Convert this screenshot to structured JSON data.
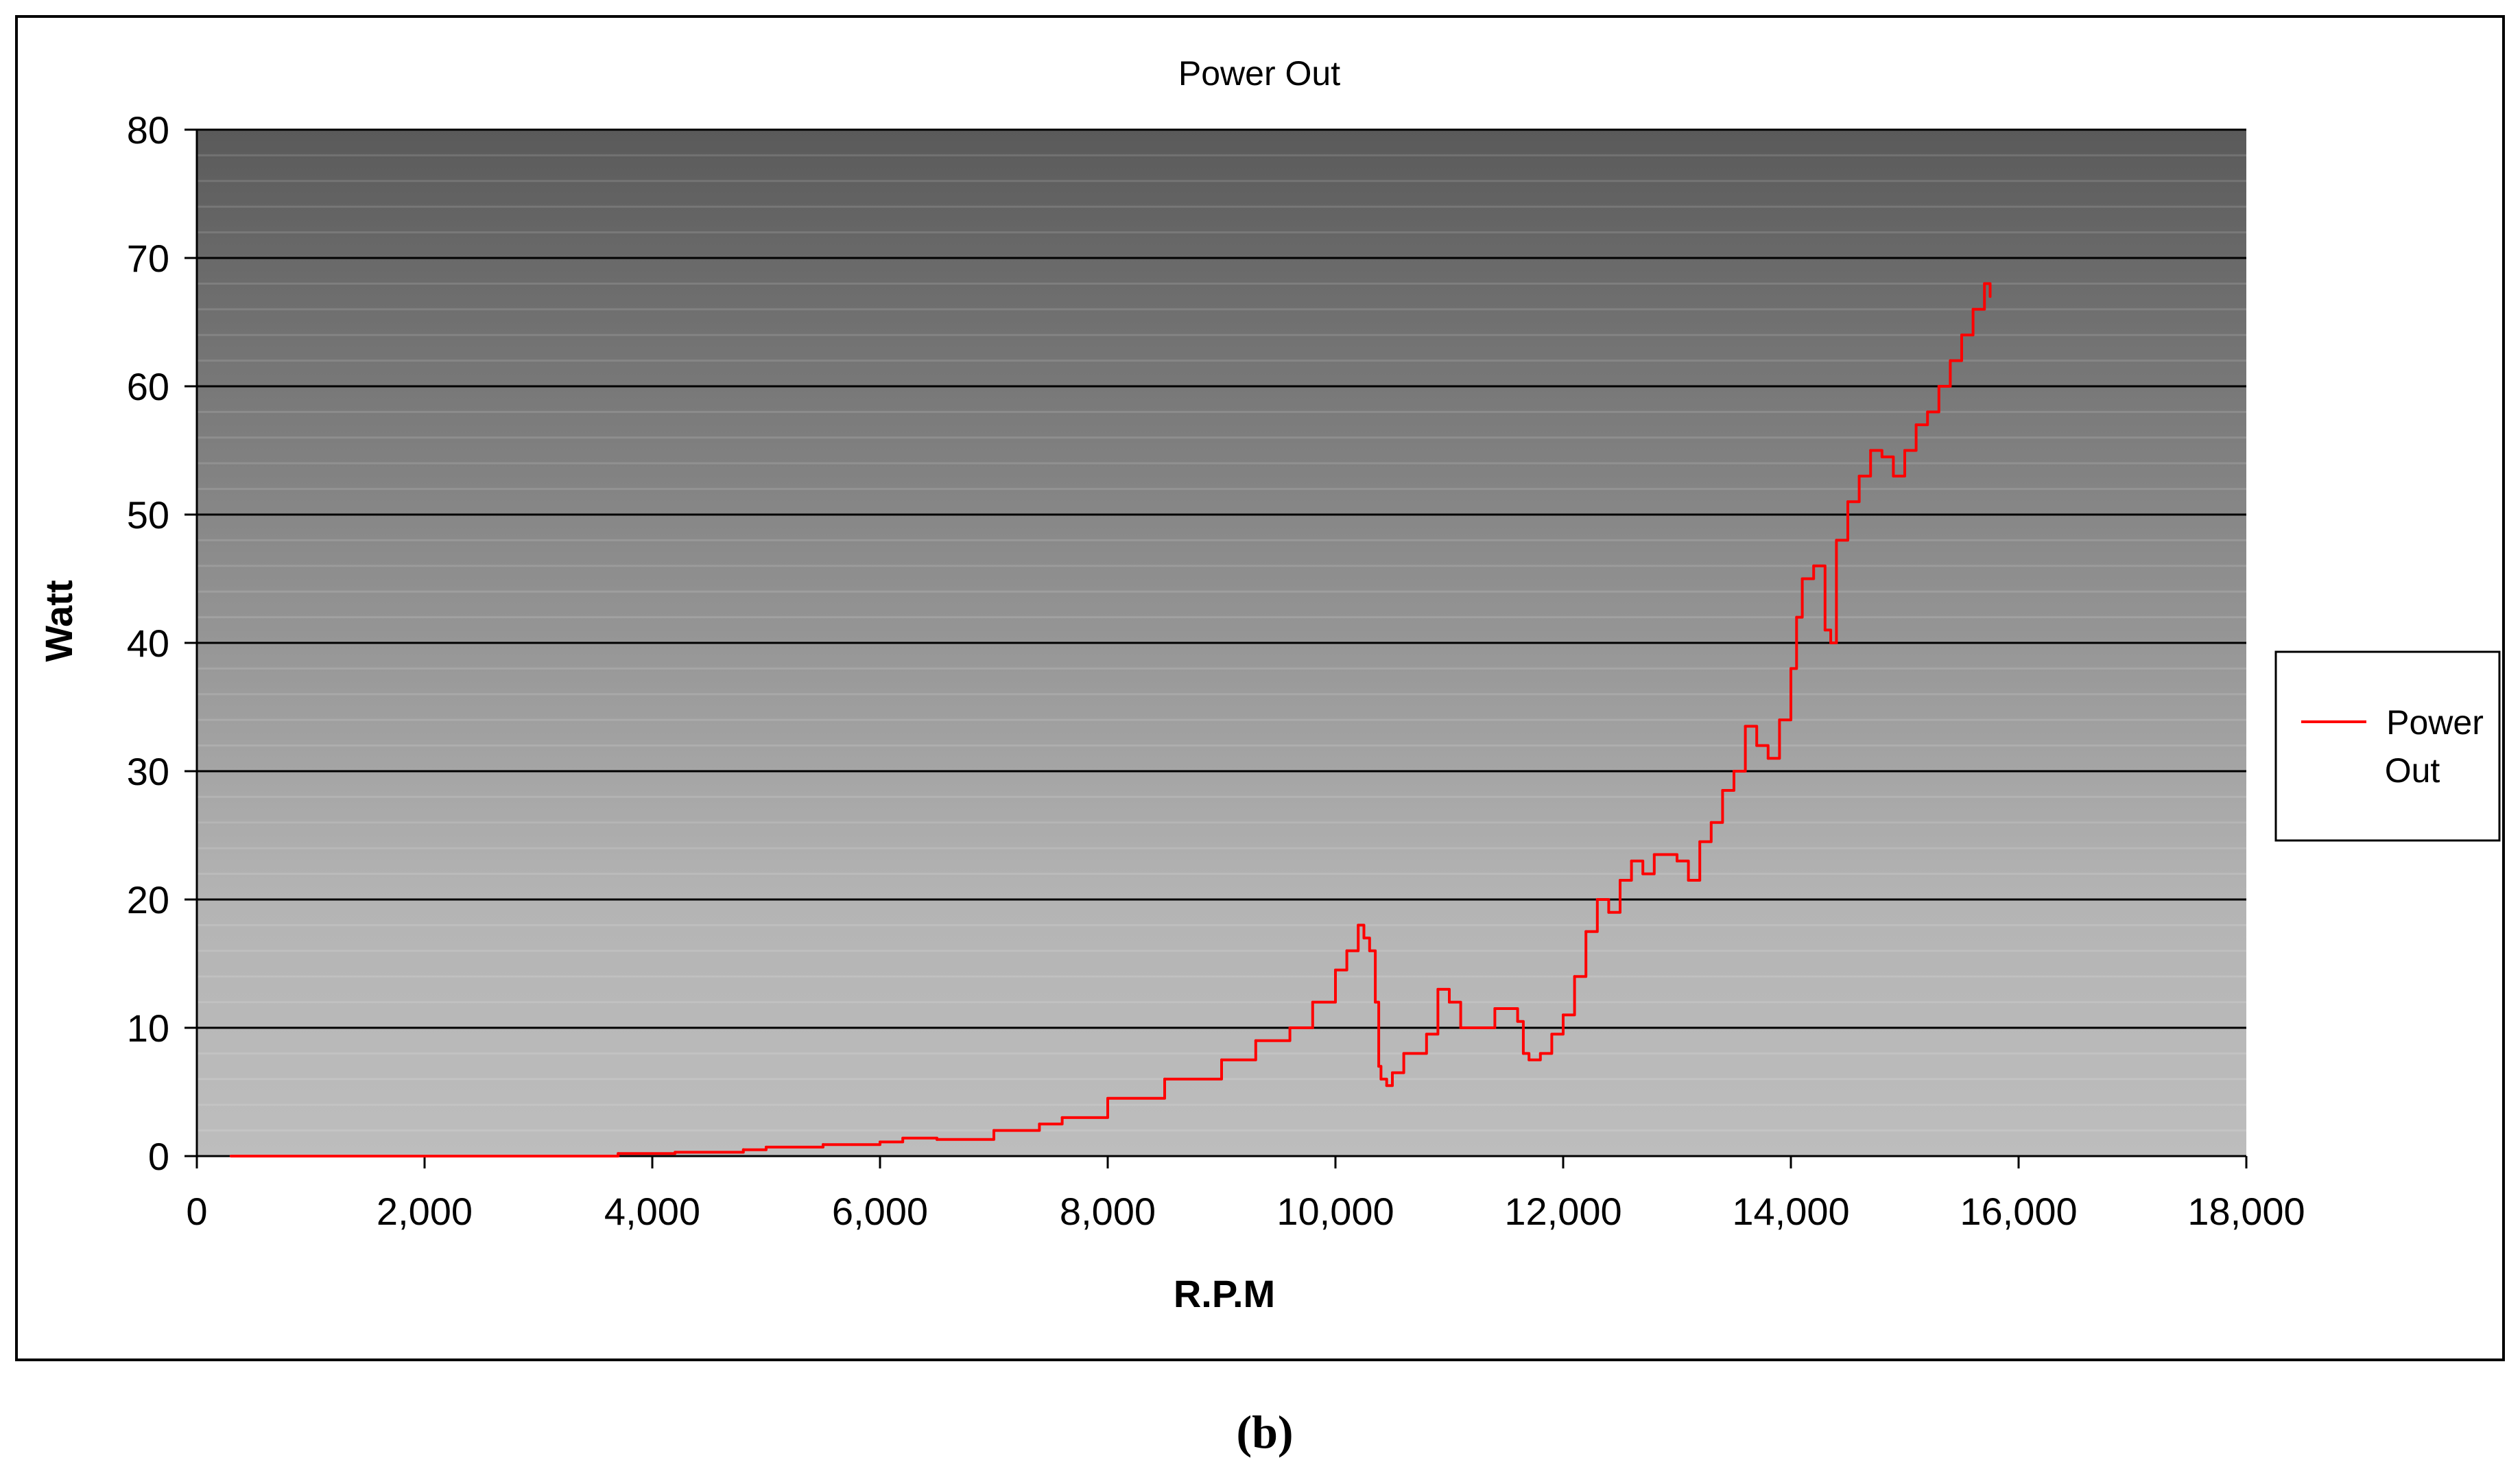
{
  "caption": "(b)",
  "chart_data": {
    "type": "line",
    "title": "Power Out",
    "xlabel": "R.P.M",
    "ylabel": "Watt",
    "xlim": [
      0,
      18000
    ],
    "ylim": [
      0,
      80
    ],
    "x_ticks": [
      0,
      2000,
      4000,
      6000,
      8000,
      10000,
      12000,
      14000,
      16000,
      18000
    ],
    "x_tick_labels": [
      "0",
      "2,000",
      "4,000",
      "6,000",
      "8,000",
      "10,000",
      "12,000",
      "14,000",
      "16,000",
      "18,000"
    ],
    "y_ticks": [
      0,
      10,
      20,
      30,
      40,
      50,
      60,
      70,
      80
    ],
    "y_tick_labels": [
      "0",
      "10",
      "20",
      "30",
      "40",
      "50",
      "60",
      "70",
      "80"
    ],
    "grid": true,
    "legend_position": "right",
    "legend": [
      "Power",
      "Out"
    ],
    "series": [
      {
        "name": "Power Out",
        "color": "#ff0000",
        "x": [
          300,
          2000,
          3700,
          4200,
          4800,
          5000,
          5500,
          6000,
          6200,
          6500,
          7000,
          7400,
          7600,
          8000,
          8500,
          9000,
          9300,
          9600,
          9800,
          10000,
          10100,
          10200,
          10250,
          10300,
          10350,
          10380,
          10400,
          10450,
          10500,
          10600,
          10800,
          10900,
          11000,
          11100,
          11200,
          11400,
          11500,
          11600,
          11650,
          11700,
          11800,
          11900,
          12000,
          12100,
          12200,
          12300,
          12400,
          12500,
          12600,
          12700,
          12800,
          13000,
          13100,
          13200,
          13300,
          13400,
          13500,
          13600,
          13700,
          13800,
          13900,
          14000,
          14050,
          14100,
          14200,
          14300,
          14350,
          14400,
          14500,
          14600,
          14700,
          14800,
          14900,
          15000,
          15100,
          15200,
          15300,
          15400,
          15500,
          15600,
          15700,
          15750
        ],
        "y": [
          0,
          0,
          0.2,
          0.3,
          0.5,
          0.7,
          0.9,
          1.1,
          1.4,
          1.3,
          2.0,
          2.5,
          3.0,
          4.5,
          6.0,
          7.5,
          9.0,
          10.0,
          12.0,
          14.5,
          16.0,
          18.0,
          17.0,
          16.0,
          12.0,
          7.0,
          6.0,
          5.5,
          6.5,
          8.0,
          9.5,
          13.0,
          12.0,
          10.0,
          10.0,
          11.5,
          11.5,
          10.5,
          8.0,
          7.5,
          8.0,
          9.5,
          11.0,
          14.0,
          17.5,
          20.0,
          19.0,
          21.5,
          23.0,
          22.0,
          23.5,
          23.0,
          21.5,
          24.5,
          26.0,
          28.5,
          30.0,
          33.5,
          32.0,
          31.0,
          34.0,
          38.0,
          42.0,
          45.0,
          46.0,
          41.0,
          40.0,
          48.0,
          51.0,
          53.0,
          55.0,
          54.5,
          53.0,
          55.0,
          57.0,
          58.0,
          60.0,
          62.0,
          64.0,
          66.0,
          68.0,
          67.0
        ]
      }
    ]
  }
}
